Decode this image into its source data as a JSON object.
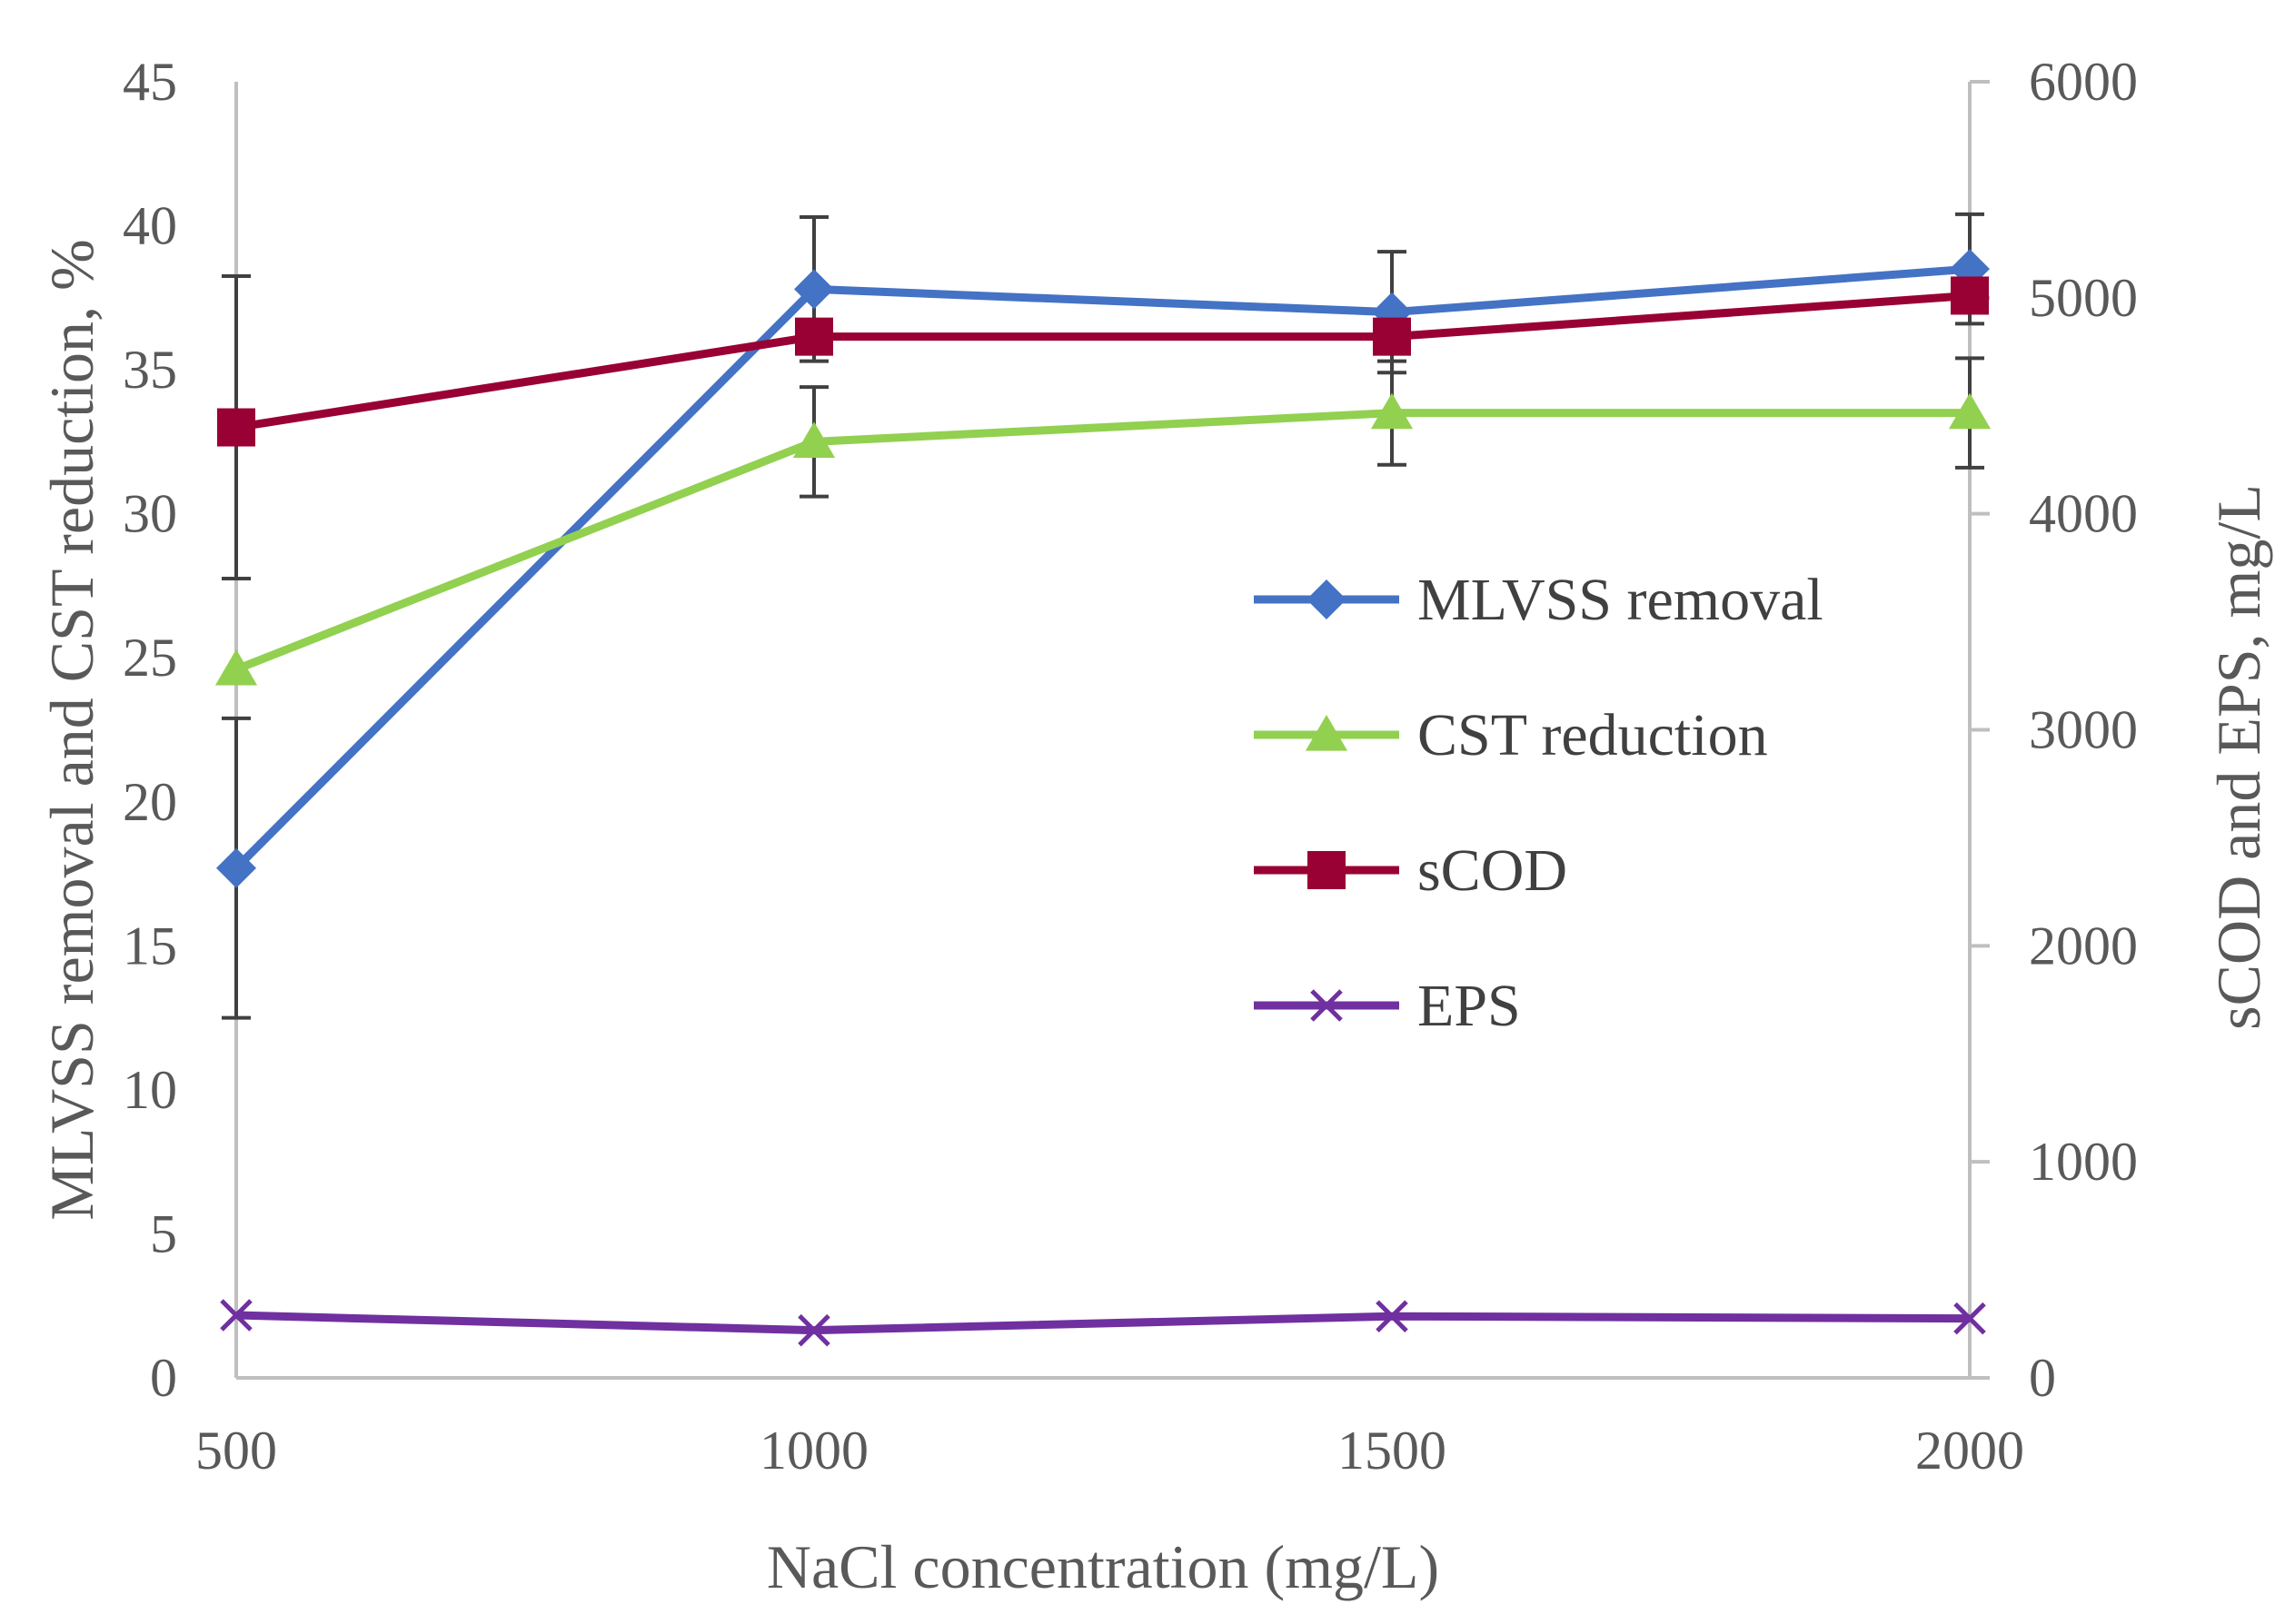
{
  "chart_data": {
    "type": "line",
    "xlabel": "NaCl concentration (mg/L)",
    "ylabel_left": "MLVSS removal and CST reduction, %",
    "ylabel_right": "sCOD and EPS, mg/L",
    "x_ticks": [
      500,
      1000,
      1500,
      2000
    ],
    "xlim": [
      500,
      2000
    ],
    "ylim_left": [
      0,
      45
    ],
    "y_ticks_left": [
      0,
      5,
      10,
      15,
      20,
      25,
      30,
      35,
      40,
      45
    ],
    "ylim_right": [
      0,
      6000
    ],
    "y_ticks_right": [
      0,
      1000,
      2000,
      3000,
      4000,
      5000,
      6000
    ],
    "legend_position": "center-right",
    "series": [
      {
        "name": "MLVSS removal",
        "axis": "left",
        "color": "#4472C4",
        "marker": "diamond",
        "x": [
          500,
          1000,
          1500,
          2000
        ],
        "values": [
          17.7,
          37.8,
          37.0,
          38.5
        ],
        "errors": [
          5.2,
          2.5,
          2.1,
          1.9
        ]
      },
      {
        "name": "CST reduction",
        "axis": "left",
        "color": "#92D050",
        "marker": "triangle",
        "x": [
          500,
          1000,
          1500,
          2000
        ],
        "values": [
          24.6,
          32.5,
          33.5,
          33.5
        ],
        "errors": [
          0.0,
          1.9,
          1.8,
          1.9
        ]
      },
      {
        "name": "sCOD",
        "axis": "right",
        "color": "#990033",
        "marker": "square",
        "x": [
          500,
          1000,
          1500,
          2000
        ],
        "values": [
          4400,
          4820,
          4820,
          5010
        ],
        "errors": [
          700,
          0,
          0,
          0
        ]
      },
      {
        "name": "EPS",
        "axis": "right",
        "color": "#7030A0",
        "marker": "x",
        "x": [
          500,
          1000,
          1500,
          2000
        ],
        "values": [
          290,
          220,
          285,
          275
        ],
        "errors": [
          0,
          0,
          0,
          0
        ]
      }
    ]
  }
}
